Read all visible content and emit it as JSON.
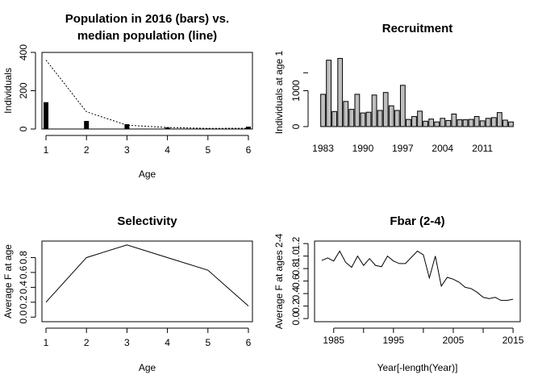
{
  "chart_data": [
    {
      "type": "bar",
      "title_lines": [
        "Population in 2016 (bars) vs.",
        "median population (line)"
      ],
      "xlabel": "Age",
      "ylabel": "Individuals",
      "x": [
        1,
        2,
        3,
        4,
        5,
        6
      ],
      "xticks": [
        "1",
        "2",
        "3",
        "4",
        "5",
        "6"
      ],
      "xlim": [
        0.9,
        6.1
      ],
      "ylim": [
        0,
        400
      ],
      "yticks": [
        0,
        200,
        400
      ],
      "series": [
        {
          "style": "bars",
          "color": "#000000",
          "values": [
            140,
            42,
            25,
            8,
            3,
            12
          ]
        },
        {
          "style": "dotted-line",
          "color": "#000000",
          "values": [
            360,
            90,
            20,
            8,
            3,
            4
          ]
        }
      ]
    },
    {
      "type": "bar",
      "title": "Recruitment",
      "xlabel": "",
      "ylabel": "Individuals at age 1",
      "categories": [
        1983,
        1984,
        1985,
        1986,
        1987,
        1988,
        1989,
        1990,
        1991,
        1992,
        1993,
        1994,
        1995,
        1996,
        1997,
        1998,
        1999,
        2000,
        2001,
        2002,
        2003,
        2004,
        2005,
        2006,
        2007,
        2008,
        2009,
        2010,
        2011,
        2012,
        2013,
        2014,
        2015,
        2016
      ],
      "xticks": [
        "1983",
        "1990",
        "1997",
        "2004",
        "2011"
      ],
      "xtick_years": [
        1983,
        1990,
        1997,
        2004,
        2011
      ],
      "values": [
        900,
        1850,
        420,
        1900,
        700,
        480,
        900,
        380,
        400,
        880,
        450,
        950,
        580,
        450,
        1150,
        200,
        280,
        430,
        150,
        210,
        130,
        230,
        170,
        350,
        190,
        190,
        200,
        280,
        160,
        230,
        250,
        390,
        180,
        130
      ],
      "bar_fill": "#bebebe",
      "ylim": [
        0,
        2000
      ],
      "yticks": [
        0,
        1000
      ]
    },
    {
      "type": "line",
      "title": "Selectivity",
      "xlabel": "Age",
      "ylabel": "Average F at age",
      "x": [
        1,
        2,
        3,
        4,
        5,
        6
      ],
      "xticks": [
        "1",
        "2",
        "3",
        "4",
        "5",
        "6"
      ],
      "xlim": [
        0.9,
        6.1
      ],
      "values": [
        0.2,
        0.8,
        0.97,
        0.8,
        0.63,
        0.15
      ],
      "ylim": [
        0,
        1.0
      ],
      "yticks": [
        "0.0",
        "0.2",
        "0.4",
        "0.6",
        "0.8"
      ],
      "ytick_values": [
        0,
        0.2,
        0.4,
        0.6,
        0.8
      ]
    },
    {
      "type": "line",
      "title": "Fbar (2-4)",
      "xlabel": "Year[-length(Year)]",
      "ylabel": "Average F at ages 2-4",
      "x": [
        1983,
        1984,
        1985,
        1986,
        1987,
        1988,
        1989,
        1990,
        1991,
        1992,
        1993,
        1994,
        1995,
        1996,
        1997,
        1998,
        1999,
        2000,
        2001,
        2002,
        2003,
        2004,
        2005,
        2006,
        2007,
        2008,
        2009,
        2010,
        2011,
        2012,
        2013,
        2014,
        2015
      ],
      "xticks": [
        "1985",
        "1995",
        "2005",
        "2015"
      ],
      "xtick_years": [
        1985,
        1995,
        2005,
        2015
      ],
      "xlim": [
        1981.8,
        2016.2
      ],
      "values": [
        0.93,
        0.97,
        0.92,
        1.08,
        0.9,
        0.82,
        1.0,
        0.85,
        0.96,
        0.85,
        0.83,
        1.0,
        0.92,
        0.88,
        0.88,
        0.98,
        1.08,
        1.02,
        0.65,
        1.0,
        0.52,
        0.66,
        0.63,
        0.58,
        0.5,
        0.48,
        0.42,
        0.34,
        0.32,
        0.34,
        0.29,
        0.29,
        0.31
      ],
      "ylim": [
        0,
        1.2
      ],
      "yticks": [
        "0.0",
        "0.2",
        "0.4",
        "0.6",
        "0.8",
        "1.0",
        "1.2"
      ],
      "ytick_values": [
        0,
        0.2,
        0.4,
        0.6,
        0.8,
        1.0,
        1.2
      ]
    }
  ]
}
